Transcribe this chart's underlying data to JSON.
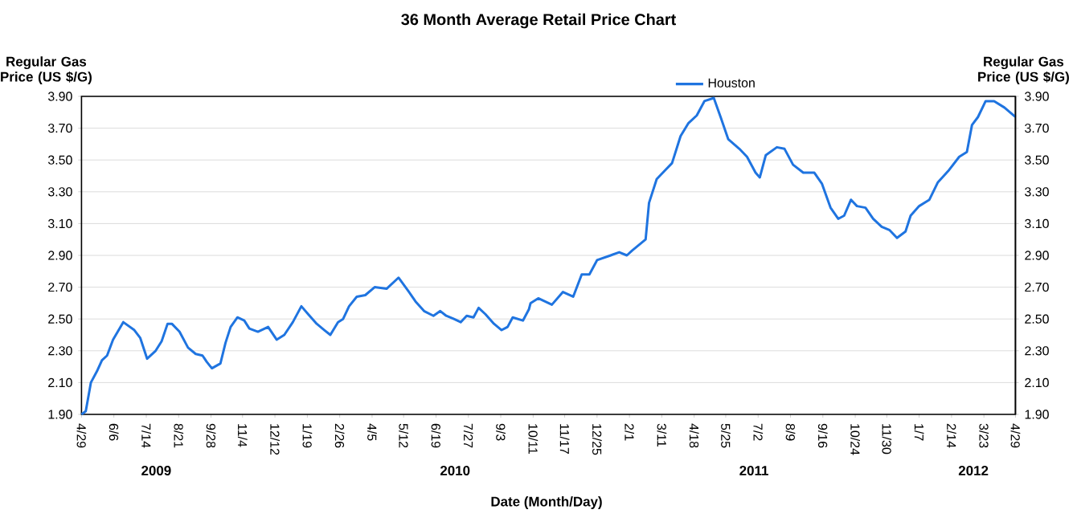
{
  "chart_data": {
    "type": "line",
    "title": "36 Month Average Retail Price Chart",
    "xlabel": "Date (Month/Day)",
    "ylabel": "Regular Gas Price (US $/G)",
    "y2label": "Regular Gas Price (US $/G)",
    "annotations": [
      "2009",
      "2010",
      "2011",
      "2012"
    ],
    "xlim": [
      "2009-04-29",
      "2012-04-29"
    ],
    "xticks": [
      {
        "value": "2009-04-29",
        "label": "4/29"
      },
      {
        "value": "2009-06-06",
        "label": "6/6"
      },
      {
        "value": "2009-07-14",
        "label": "7/14"
      },
      {
        "value": "2009-08-21",
        "label": "8/21"
      },
      {
        "value": "2009-09-28",
        "label": "9/28"
      },
      {
        "value": "2009-11-04",
        "label": "11/4"
      },
      {
        "value": "2009-12-12",
        "label": "12/12"
      },
      {
        "value": "2010-01-19",
        "label": "1/19"
      },
      {
        "value": "2010-02-26",
        "label": "2/26"
      },
      {
        "value": "2010-04-05",
        "label": "4/5"
      },
      {
        "value": "2010-05-12",
        "label": "5/12"
      },
      {
        "value": "2010-06-19",
        "label": "6/19"
      },
      {
        "value": "2010-07-27",
        "label": "7/27"
      },
      {
        "value": "2010-09-03",
        "label": "9/3"
      },
      {
        "value": "2010-10-11",
        "label": "10/11"
      },
      {
        "value": "2010-11-17",
        "label": "11/17"
      },
      {
        "value": "2010-12-25",
        "label": "12/25"
      },
      {
        "value": "2011-02-01",
        "label": "2/1"
      },
      {
        "value": "2011-03-11",
        "label": "3/11"
      },
      {
        "value": "2011-04-18",
        "label": "4/18"
      },
      {
        "value": "2011-05-25",
        "label": "5/25"
      },
      {
        "value": "2011-07-02",
        "label": "7/2"
      },
      {
        "value": "2011-08-09",
        "label": "8/9"
      },
      {
        "value": "2011-09-16",
        "label": "9/16"
      },
      {
        "value": "2011-10-24",
        "label": "10/24"
      },
      {
        "value": "2011-11-30",
        "label": "11/30"
      },
      {
        "value": "2012-01-07",
        "label": "1/7"
      },
      {
        "value": "2012-02-14",
        "label": "2/14"
      },
      {
        "value": "2012-03-23",
        "label": "3/23"
      },
      {
        "value": "2012-04-29",
        "label": "4/29"
      }
    ],
    "ylim": [
      1.9,
      3.9
    ],
    "yticks": [
      {
        "value": 1.9,
        "label": "1.90"
      },
      {
        "value": 2.1,
        "label": "2.10"
      },
      {
        "value": 2.3,
        "label": "2.30"
      },
      {
        "value": 2.5,
        "label": "2.50"
      },
      {
        "value": 2.7,
        "label": "2.70"
      },
      {
        "value": 2.9,
        "label": "2.90"
      },
      {
        "value": 3.1,
        "label": "3.10"
      },
      {
        "value": 3.3,
        "label": "3.30"
      },
      {
        "value": 3.5,
        "label": "3.50"
      },
      {
        "value": 3.7,
        "label": "3.70"
      },
      {
        "value": 3.9,
        "label": "3.90"
      }
    ],
    "y2lim": [
      1.9,
      3.9
    ],
    "y2ticks": [
      {
        "value": 1.9,
        "label": "1.90"
      },
      {
        "value": 2.1,
        "label": "2.10"
      },
      {
        "value": 2.3,
        "label": "2.30"
      },
      {
        "value": 2.5,
        "label": "2.50"
      },
      {
        "value": 2.7,
        "label": "2.70"
      },
      {
        "value": 2.9,
        "label": "2.90"
      },
      {
        "value": 3.1,
        "label": "3.10"
      },
      {
        "value": 3.3,
        "label": "3.30"
      },
      {
        "value": 3.5,
        "label": "3.50"
      },
      {
        "value": 3.7,
        "label": "3.70"
      },
      {
        "value": 3.9,
        "label": "3.90"
      }
    ],
    "grid": "y",
    "legend": "top",
    "marker": "none",
    "line_style": "solid",
    "series": [
      {
        "name": "Houston",
        "color": "#1f74e0",
        "x": [
          "2009-04-29",
          "2009-05-04",
          "2009-05-10",
          "2009-05-17",
          "2009-05-23",
          "2009-05-29",
          "2009-06-05",
          "2009-06-17",
          "2009-06-30",
          "2009-07-07",
          "2009-07-15",
          "2009-07-25",
          "2009-08-01",
          "2009-08-08",
          "2009-08-13",
          "2009-08-22",
          "2009-09-01",
          "2009-09-10",
          "2009-09-18",
          "2009-09-23",
          "2009-09-29",
          "2009-10-09",
          "2009-10-15",
          "2009-10-21",
          "2009-10-29",
          "2009-11-06",
          "2009-11-12",
          "2009-11-22",
          "2009-12-04",
          "2009-12-14",
          "2009-12-23",
          "2010-01-02",
          "2010-01-12",
          "2010-01-20",
          "2010-01-30",
          "2010-02-08",
          "2010-02-15",
          "2010-02-24",
          "2010-03-02",
          "2010-03-09",
          "2010-03-18",
          "2010-03-28",
          "2010-04-08",
          "2010-04-22",
          "2010-05-06",
          "2010-05-17",
          "2010-05-26",
          "2010-06-05",
          "2010-06-16",
          "2010-06-24",
          "2010-07-01",
          "2010-07-10",
          "2010-07-18",
          "2010-07-25",
          "2010-08-02",
          "2010-08-08",
          "2010-08-16",
          "2010-08-26",
          "2010-09-04",
          "2010-09-11",
          "2010-09-17",
          "2010-09-29",
          "2010-10-06",
          "2010-10-08",
          "2010-10-17",
          "2010-11-02",
          "2010-11-15",
          "2010-11-27",
          "2010-12-07",
          "2010-12-16",
          "2010-12-25",
          "2011-01-10",
          "2011-01-20",
          "2011-01-29",
          "2011-02-04",
          "2011-02-20",
          "2011-02-24",
          "2011-03-05",
          "2011-03-14",
          "2011-03-23",
          "2011-04-02",
          "2011-04-11",
          "2011-04-21",
          "2011-04-30",
          "2011-05-11",
          "2011-05-19",
          "2011-05-28",
          "2011-06-10",
          "2011-06-19",
          "2011-06-29",
          "2011-07-04",
          "2011-07-11",
          "2011-07-24",
          "2011-08-02",
          "2011-08-12",
          "2011-08-24",
          "2011-09-06",
          "2011-09-15",
          "2011-09-25",
          "2011-10-04",
          "2011-10-11",
          "2011-10-19",
          "2011-10-26",
          "2011-11-05",
          "2011-11-14",
          "2011-11-24",
          "2011-12-03",
          "2011-12-12",
          "2011-12-22",
          "2011-12-28",
          "2012-01-07",
          "2012-01-19",
          "2012-01-29",
          "2012-02-10",
          "2012-02-23",
          "2012-03-03",
          "2012-03-09",
          "2012-03-16",
          "2012-03-25",
          "2012-04-04",
          "2012-04-16",
          "2012-04-29"
        ],
        "values": [
          1.9,
          1.92,
          2.1,
          2.17,
          2.24,
          2.27,
          2.37,
          2.48,
          2.43,
          2.38,
          2.25,
          2.3,
          2.36,
          2.47,
          2.47,
          2.42,
          2.32,
          2.28,
          2.27,
          2.23,
          2.19,
          2.22,
          2.35,
          2.45,
          2.51,
          2.49,
          2.44,
          2.42,
          2.45,
          2.37,
          2.4,
          2.48,
          2.58,
          2.53,
          2.47,
          2.43,
          2.4,
          2.48,
          2.5,
          2.58,
          2.64,
          2.65,
          2.7,
          2.69,
          2.76,
          2.68,
          2.61,
          2.55,
          2.52,
          2.55,
          2.52,
          2.5,
          2.48,
          2.52,
          2.51,
          2.57,
          2.53,
          2.47,
          2.43,
          2.45,
          2.51,
          2.49,
          2.56,
          2.6,
          2.63,
          2.59,
          2.67,
          2.64,
          2.78,
          2.78,
          2.87,
          2.9,
          2.92,
          2.9,
          2.93,
          3.0,
          3.23,
          3.38,
          3.43,
          3.48,
          3.65,
          3.73,
          3.78,
          3.87,
          3.89,
          3.77,
          3.63,
          3.57,
          3.52,
          3.42,
          3.39,
          3.53,
          3.58,
          3.57,
          3.47,
          3.42,
          3.42,
          3.35,
          3.2,
          3.13,
          3.15,
          3.25,
          3.21,
          3.2,
          3.13,
          3.08,
          3.06,
          3.01,
          3.05,
          3.15,
          3.21,
          3.25,
          3.36,
          3.43,
          3.52,
          3.55,
          3.72,
          3.77,
          3.87,
          3.87,
          3.83,
          3.77
        ]
      }
    ]
  }
}
